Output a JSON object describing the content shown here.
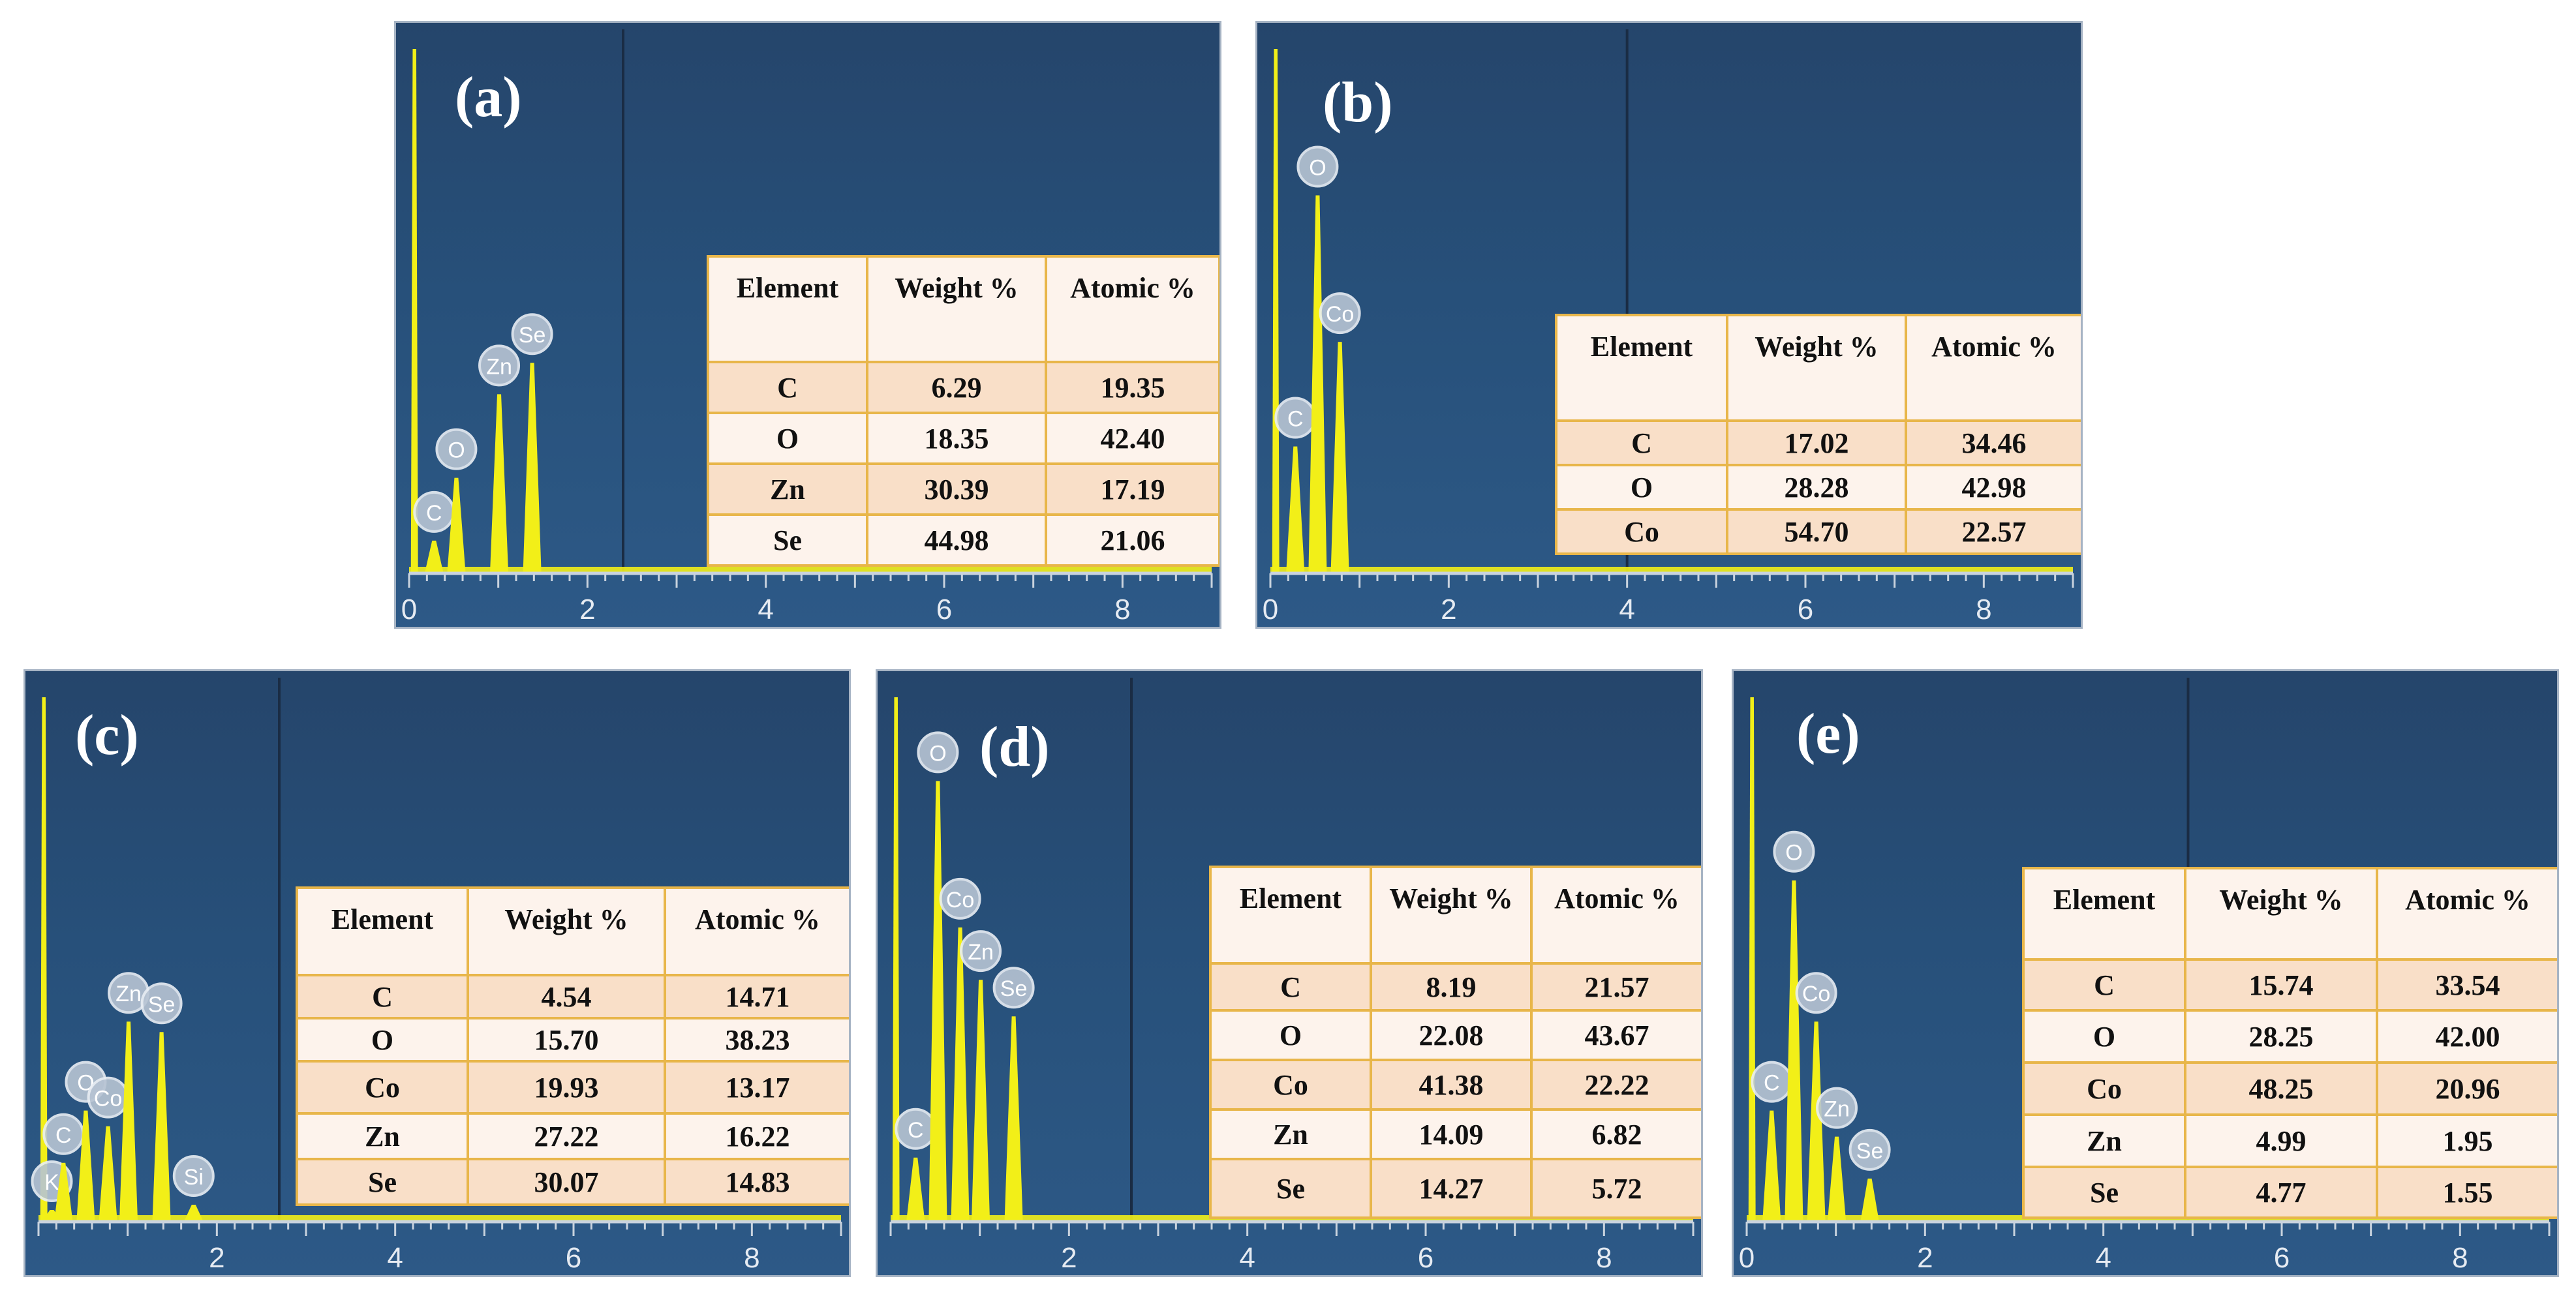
{
  "chart_data": [
    {
      "type": "table",
      "panel_label": "(a)",
      "x_ticks": [
        "0",
        "2",
        "4",
        "6",
        "8"
      ],
      "xlim": [
        0,
        9
      ],
      "peaks": [
        {
          "element": "C",
          "x": 0.28,
          "y": 6
        },
        {
          "element": "O",
          "x": 0.53,
          "y": 18
        },
        {
          "element": "Zn",
          "x": 1.01,
          "y": 34
        },
        {
          "element": "Se",
          "x": 1.38,
          "y": 40
        }
      ],
      "table": {
        "headers": [
          "Element",
          "Weight %",
          "Atomic %"
        ],
        "rows": [
          [
            "C",
            "6.29",
            "19.35"
          ],
          [
            "O",
            "18.35",
            "42.40"
          ],
          [
            "Zn",
            "30.39",
            "17.19"
          ],
          [
            "Se",
            "44.98",
            "21.06"
          ]
        ]
      }
    },
    {
      "type": "table",
      "panel_label": "(b)",
      "x_ticks": [
        "0",
        "2",
        "4",
        "6",
        "8"
      ],
      "xlim": [
        0,
        9
      ],
      "peaks": [
        {
          "element": "C",
          "x": 0.28,
          "y": 24
        },
        {
          "element": "O",
          "x": 0.53,
          "y": 72
        },
        {
          "element": "Co",
          "x": 0.78,
          "y": 44
        }
      ],
      "table": {
        "headers": [
          "Element",
          "Weight %",
          "Atomic %"
        ],
        "rows": [
          [
            "C",
            "17.02",
            "34.46"
          ],
          [
            "O",
            "28.28",
            "42.98"
          ],
          [
            "Co",
            "54.70",
            "22.57"
          ]
        ]
      }
    },
    {
      "type": "table",
      "panel_label": "(c)",
      "x_ticks": [
        "2",
        "4",
        "6",
        "8"
      ],
      "xlim": [
        0,
        9
      ],
      "peaks": [
        {
          "element": "K",
          "x": 0.15,
          "y": 2
        },
        {
          "element": "C",
          "x": 0.28,
          "y": 11
        },
        {
          "element": "O",
          "x": 0.53,
          "y": 21
        },
        {
          "element": "Co",
          "x": 0.78,
          "y": 18
        },
        {
          "element": "Zn",
          "x": 1.01,
          "y": 38
        },
        {
          "element": "Se",
          "x": 1.38,
          "y": 36
        },
        {
          "element": "Si",
          "x": 1.74,
          "y": 3
        }
      ],
      "table": {
        "headers": [
          "Element",
          "Weight %",
          "Atomic %"
        ],
        "rows": [
          [
            "C",
            "4.54",
            "14.71"
          ],
          [
            "O",
            "15.70",
            "38.23"
          ],
          [
            "Co",
            "19.93",
            "13.17"
          ],
          [
            "Zn",
            "27.22",
            "16.22"
          ],
          [
            "Se",
            "30.07",
            "14.83"
          ]
        ]
      }
    },
    {
      "type": "table",
      "panel_label": "(d)",
      "x_ticks": [
        "2",
        "4",
        "6",
        "8"
      ],
      "xlim": [
        0,
        9
      ],
      "peaks": [
        {
          "element": "C",
          "x": 0.28,
          "y": 12
        },
        {
          "element": "O",
          "x": 0.53,
          "y": 84
        },
        {
          "element": "Co",
          "x": 0.78,
          "y": 56
        },
        {
          "element": "Zn",
          "x": 1.01,
          "y": 46
        },
        {
          "element": "Se",
          "x": 1.38,
          "y": 39
        }
      ],
      "table": {
        "headers": [
          "Element",
          "Weight %",
          "Atomic %"
        ],
        "rows": [
          [
            "C",
            "8.19",
            "21.57"
          ],
          [
            "O",
            "22.08",
            "43.67"
          ],
          [
            "Co",
            "41.38",
            "22.22"
          ],
          [
            "Zn",
            "14.09",
            "6.82"
          ],
          [
            "Se",
            "14.27",
            "5.72"
          ]
        ]
      }
    },
    {
      "type": "table",
      "panel_label": "(e)",
      "x_ticks": [
        "0",
        "2",
        "4",
        "6",
        "8"
      ],
      "xlim": [
        0,
        9
      ],
      "peaks": [
        {
          "element": "C",
          "x": 0.28,
          "y": 21
        },
        {
          "element": "O",
          "x": 0.53,
          "y": 65
        },
        {
          "element": "Co",
          "x": 0.78,
          "y": 38
        },
        {
          "element": "Zn",
          "x": 1.01,
          "y": 16
        },
        {
          "element": "Se",
          "x": 1.38,
          "y": 8
        }
      ],
      "table": {
        "headers": [
          "Element",
          "Weight %",
          "Atomic %"
        ],
        "rows": [
          [
            "C",
            "15.74",
            "33.54"
          ],
          [
            "O",
            "28.25",
            "42.00"
          ],
          [
            "Co",
            "48.25",
            "20.96"
          ],
          [
            "Zn",
            "4.99",
            "1.95"
          ],
          [
            "Se",
            "4.77",
            "1.55"
          ]
        ]
      }
    }
  ],
  "colors": {
    "spectrum": "#f2ef18",
    "panel_background": "#28507a",
    "table_border": "#e8b64a",
    "table_header_bg": "#fdf3ec",
    "table_alt_row_bg": "#f9dfc8"
  }
}
